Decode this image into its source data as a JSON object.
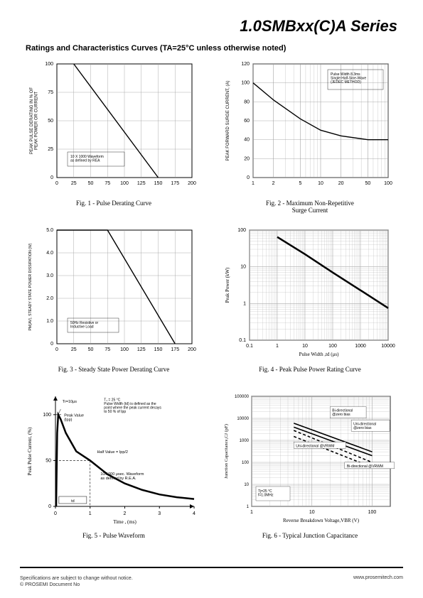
{
  "page_title": "1.0SMBxx(C)A Series",
  "section_title": "Ratings and Characteristics Curves (TA=25°C unless otherwise noted)",
  "footer": {
    "line1": "Specifications are subject to change without notice.",
    "line2": "© PROSEMI  Document No",
    "right": "www.prosemitech.com"
  },
  "fig1": {
    "caption": "Fig. 1 - Pulse Derating Curve",
    "xlabel_ticks": [
      "0",
      "25",
      "50",
      "75",
      "100",
      "125",
      "150",
      "175",
      "200"
    ],
    "ylabel": "PEAK PULSE DERATING IN % OF\nPEAK POWER OR CURRENT",
    "ylabel_ticks": [
      "0",
      "25",
      "50",
      "75",
      "100"
    ],
    "annotation": "10 X 1000 Waveform\nas defined by REA",
    "line": [
      [
        25,
        100
      ],
      [
        150,
        0
      ]
    ],
    "xlim": [
      0,
      200
    ],
    "ylim": [
      0,
      100
    ],
    "grid_color": "#999",
    "line_color": "#000",
    "border_color": "#000",
    "bg": "#ffffff"
  },
  "fig2": {
    "caption": "Fig. 2 - Maximum Non-Repetitive\nSurge Current",
    "xlabel_ticks": [
      "1",
      "2",
      "5",
      "10",
      "20",
      "50",
      "100"
    ],
    "ylabel": "PEAK FORWARD SURGE CURRENT, (A)",
    "ylabel_ticks": [
      "0",
      "20",
      "40",
      "60",
      "80",
      "100",
      "120"
    ],
    "annotation": "Pulse Width 8.3ms\nSingle Half-Sine-Wave\n(JEDEC METHOD)",
    "line": [
      [
        1,
        100
      ],
      [
        2,
        82
      ],
      [
        5,
        62
      ],
      [
        10,
        50
      ],
      [
        20,
        44
      ],
      [
        50,
        40
      ],
      [
        100,
        40
      ]
    ],
    "xlim_log": [
      1,
      100
    ],
    "ylim": [
      0,
      120
    ],
    "grid_color": "#999",
    "line_color": "#000",
    "border_color": "#000",
    "bg": "#ffffff"
  },
  "fig3": {
    "caption": "Fig. 3 - Steady State Power Derating Curve",
    "xlabel_ticks": [
      "0",
      "25",
      "50",
      "75",
      "100",
      "125",
      "150",
      "175",
      "200"
    ],
    "ylabel": "PM(AV), STEADY STATE POWER DISSIPATION (W)",
    "ylabel_ticks": [
      "0",
      "1.0",
      "2.0",
      "3.0",
      "4.0",
      "5.0"
    ],
    "annotation": "50Hz Resistive or\nInductive Load",
    "line": [
      [
        0,
        5
      ],
      [
        75,
        5
      ],
      [
        175,
        0
      ]
    ],
    "xlim": [
      0,
      200
    ],
    "ylim": [
      0,
      5
    ],
    "grid_color": "#999",
    "line_color": "#000",
    "border_color": "#000",
    "bg": "#ffffff"
  },
  "fig4": {
    "caption": "Fig. 4 - Peak Pulse Power Rating Curve",
    "xlabel": "Pulse Width ,td (μs)",
    "ylabel": "Peak Power (kW)",
    "xlabel_ticks": [
      "0.1",
      "1",
      "10",
      "100",
      "1000",
      "10000"
    ],
    "ylabel_ticks": [
      "0.1",
      "1",
      "10",
      "100"
    ],
    "line": [
      [
        1,
        65
      ],
      [
        10,
        22
      ],
      [
        100,
        7
      ],
      [
        1000,
        2.3
      ],
      [
        10000,
        0.75
      ]
    ],
    "xlim_log": [
      0.1,
      10000
    ],
    "ylim_log": [
      0.1,
      100
    ],
    "grid_color": "#aaa",
    "line_color": "#000",
    "border_color": "#000",
    "bg": "#ffffff",
    "line_width": 2.5
  },
  "fig5": {
    "caption": "Fig. 5 - Pulse Waveform",
    "xlabel": "Time , (ms)",
    "ylabel": "Peak Pulse Current, (%)",
    "xlabel_ticks": [
      "0",
      "1",
      "2",
      "3",
      "4"
    ],
    "ylabel_ticks": [
      "0",
      "50",
      "100"
    ],
    "annotations": {
      "tr": "Tr=10μs",
      "peak": "Peak Value\n(Ipp)",
      "half": "Half Value = Ipp/2",
      "td": "td",
      "cond": "T₁ = 25 °C\nPulse Width (td) is defined as the\npoint where the peak current decays\nto 50 % of Ipp",
      "wave": "10/1000 μsec. Waveform\nas defined by R.E.A."
    },
    "curve": [
      [
        0.02,
        0
      ],
      [
        0.05,
        80
      ],
      [
        0.08,
        100
      ],
      [
        0.15,
        95
      ],
      [
        0.3,
        80
      ],
      [
        0.6,
        60
      ],
      [
        1.0,
        50
      ],
      [
        1.5,
        35
      ],
      [
        2.0,
        25
      ],
      [
        2.5,
        18
      ],
      [
        3.0,
        13
      ],
      [
        3.5,
        10
      ],
      [
        4.0,
        8
      ]
    ],
    "xlim": [
      0,
      4
    ],
    "ylim": [
      0,
      120
    ],
    "line_color": "#000",
    "border_color": "#000",
    "bg": "#ffffff",
    "line_width": 2.5
  },
  "fig6": {
    "caption": "Fig. 6 - Typical Junction Capacitance",
    "xlabel": "Reverse Breakdown Voltage,VBR (V)",
    "ylabel": "Junction Capacitance,CJ (pF)",
    "xlabel_ticks": [
      "1",
      "10",
      "100"
    ],
    "ylabel_ticks": [
      "1",
      "10",
      "100",
      "1000",
      "10000",
      "100000"
    ],
    "annotations": {
      "a1": "Bi-directional\n@zero bias",
      "a2": "Uni-directional\n@zero bias",
      "a3": "Uni-directional @VRWM",
      "a4": "Bi-directional @VRWM",
      "cond": "Tj=25 °C\nf=1.0MHz"
    },
    "lines": [
      {
        "pts": [
          [
            5,
            6000
          ],
          [
            100,
            300
          ]
        ],
        "dash": false
      },
      {
        "pts": [
          [
            5,
            4000
          ],
          [
            100,
            200
          ]
        ],
        "dash": false
      },
      {
        "pts": [
          [
            5,
            2800
          ],
          [
            100,
            100
          ]
        ],
        "dash": true
      },
      {
        "pts": [
          [
            5,
            1500
          ],
          [
            100,
            60
          ]
        ],
        "dash": true
      }
    ],
    "xlim_log": [
      1,
      200
    ],
    "ylim_log": [
      1,
      100000
    ],
    "grid_color": "#aaa",
    "line_color": "#000",
    "border_color": "#000",
    "bg": "#ffffff"
  }
}
